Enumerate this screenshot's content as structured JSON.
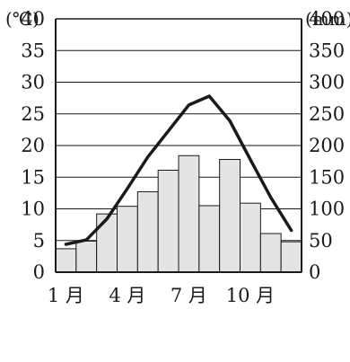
{
  "chart_data": {
    "type": "bar+line",
    "categories": [
      "1",
      "2",
      "3",
      "4",
      "5",
      "6",
      "7",
      "8",
      "9",
      "10",
      "11",
      "12"
    ],
    "x_tick_labels": [
      "1 月",
      "4 月",
      "7 月",
      "10 月"
    ],
    "x_tick_months": [
      1,
      4,
      7,
      10
    ],
    "left_unit": "(℃)",
    "right_unit": "(mm)",
    "left_ticks": [
      "0",
      "5",
      "10",
      "15",
      "20",
      "25",
      "30",
      "35",
      "40"
    ],
    "right_ticks": [
      "0",
      "50",
      "100",
      "150",
      "200",
      "250",
      "300",
      "350",
      "400"
    ],
    "left_ylim": [
      0,
      40
    ],
    "right_ylim": [
      0,
      400
    ],
    "grid": true,
    "series": [
      {
        "kind": "bar",
        "axis": "right",
        "values": [
          37,
          49,
          92,
          104,
          127,
          161,
          184,
          105,
          178,
          109,
          61,
          48
        ]
      },
      {
        "kind": "line",
        "axis": "left",
        "values": [
          4.4,
          5.1,
          8.4,
          13.2,
          18.2,
          22.3,
          26.4,
          27.8,
          23.9,
          17.8,
          11.8,
          6.6
        ]
      }
    ],
    "colors": {
      "bar_fill": "#e4e4e4",
      "bar_stroke": "#1a1a1a",
      "line": "#1a1a1a",
      "grid": "#1a1a1a"
    }
  }
}
